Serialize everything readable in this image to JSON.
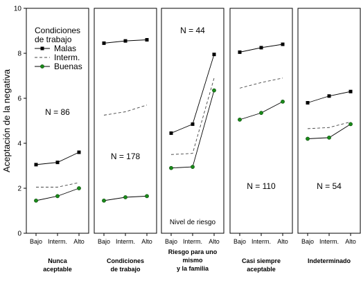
{
  "chart_data": {
    "type": "line",
    "ylabel": "Aceptación de la negativa",
    "ylim": [
      0,
      10
    ],
    "yticks": [
      "0",
      "2",
      "4",
      "6",
      "8",
      "10"
    ],
    "x_ticks": [
      "Bajo",
      "Interm.",
      "Alto"
    ],
    "x_axis_annotation": "Nivel de riesgo",
    "grid": false,
    "legend": {
      "title": "Condiciones de trabajo",
      "placement": "top-left of first panel",
      "entries": [
        {
          "name": "Malas",
          "color": "#000000",
          "dash": "solid",
          "marker": "square"
        },
        {
          "name": "Interm.",
          "color": "#000000",
          "dash": "dashed",
          "marker": "none"
        },
        {
          "name": "Buenas",
          "color": "#000000",
          "dash": "solid",
          "marker": "circle",
          "marker_color": "#1a8a1a"
        }
      ]
    },
    "panels": [
      {
        "label": "Nunca aceptable",
        "n_label": "N = 86",
        "series": [
          {
            "name": "Malas",
            "values": [
              3.05,
              3.15,
              3.6
            ]
          },
          {
            "name": "Interm.",
            "values": [
              2.05,
              2.05,
              2.25
            ]
          },
          {
            "name": "Buenas",
            "values": [
              1.45,
              1.65,
              2.0
            ]
          }
        ]
      },
      {
        "label": "Condiciones de trabajo",
        "n_label": "N = 178",
        "series": [
          {
            "name": "Malas",
            "values": [
              8.45,
              8.55,
              8.6
            ]
          },
          {
            "name": "Interm.",
            "values": [
              5.25,
              5.4,
              5.7
            ]
          },
          {
            "name": "Buenas",
            "values": [
              1.45,
              1.6,
              1.65
            ]
          }
        ]
      },
      {
        "label": "Riesgo para uno mismo y la familia",
        "n_label": "N = 44",
        "series": [
          {
            "name": "Malas",
            "values": [
              4.45,
              4.85,
              7.95
            ]
          },
          {
            "name": "Interm.",
            "values": [
              3.5,
              3.55,
              6.9
            ]
          },
          {
            "name": "Buenas",
            "values": [
              2.9,
              2.95,
              6.35
            ]
          }
        ]
      },
      {
        "label": "Casi siempre aceptable",
        "n_label": "N = 110",
        "series": [
          {
            "name": "Malas",
            "values": [
              8.05,
              8.25,
              8.4
            ]
          },
          {
            "name": "Interm.",
            "values": [
              6.45,
              6.7,
              6.9
            ]
          },
          {
            "name": "Buenas",
            "values": [
              5.05,
              5.35,
              5.85
            ]
          }
        ]
      },
      {
        "label": "Indeterminado",
        "n_label": "N = 54",
        "series": [
          {
            "name": "Malas",
            "values": [
              5.8,
              6.1,
              6.3
            ]
          },
          {
            "name": "Interm.",
            "values": [
              4.65,
              4.7,
              4.95
            ]
          },
          {
            "name": "Buenas",
            "values": [
              4.2,
              4.25,
              4.85
            ]
          }
        ]
      }
    ]
  }
}
